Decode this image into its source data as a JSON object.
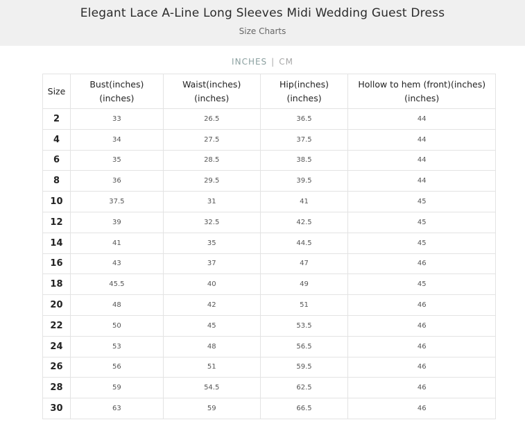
{
  "header": {
    "title": "Elegant Lace A-Line Long Sleeves Midi Wedding Guest Dress",
    "subtitle": "Size Charts"
  },
  "unit_toggle": {
    "options": [
      "INCHES",
      "CM"
    ],
    "separator": "|",
    "selected": "INCHES"
  },
  "table": {
    "headers": [
      {
        "line1": "Size",
        "line2": ""
      },
      {
        "line1": "Bust(inches)",
        "line2": "(inches)"
      },
      {
        "line1": "Waist(inches)",
        "line2": "(inches)"
      },
      {
        "line1": "Hip(inches)",
        "line2": "(inches)"
      },
      {
        "line1": "Hollow to hem (front)(inches)",
        "line2": "(inches)"
      }
    ],
    "rows": [
      [
        "2",
        "33",
        "26.5",
        "36.5",
        "44"
      ],
      [
        "4",
        "34",
        "27.5",
        "37.5",
        "44"
      ],
      [
        "6",
        "35",
        "28.5",
        "38.5",
        "44"
      ],
      [
        "8",
        "36",
        "29.5",
        "39.5",
        "44"
      ],
      [
        "10",
        "37.5",
        "31",
        "41",
        "45"
      ],
      [
        "12",
        "39",
        "32.5",
        "42.5",
        "45"
      ],
      [
        "14",
        "41",
        "35",
        "44.5",
        "45"
      ],
      [
        "16",
        "43",
        "37",
        "47",
        "46"
      ],
      [
        "18",
        "45.5",
        "40",
        "49",
        "45"
      ],
      [
        "20",
        "48",
        "42",
        "51",
        "46"
      ],
      [
        "22",
        "50",
        "45",
        "53.5",
        "46"
      ],
      [
        "24",
        "53",
        "48",
        "56.5",
        "46"
      ],
      [
        "26",
        "56",
        "51",
        "59.5",
        "46"
      ],
      [
        "28",
        "59",
        "54.5",
        "62.5",
        "46"
      ],
      [
        "30",
        "63",
        "59",
        "66.5",
        "46"
      ]
    ]
  }
}
